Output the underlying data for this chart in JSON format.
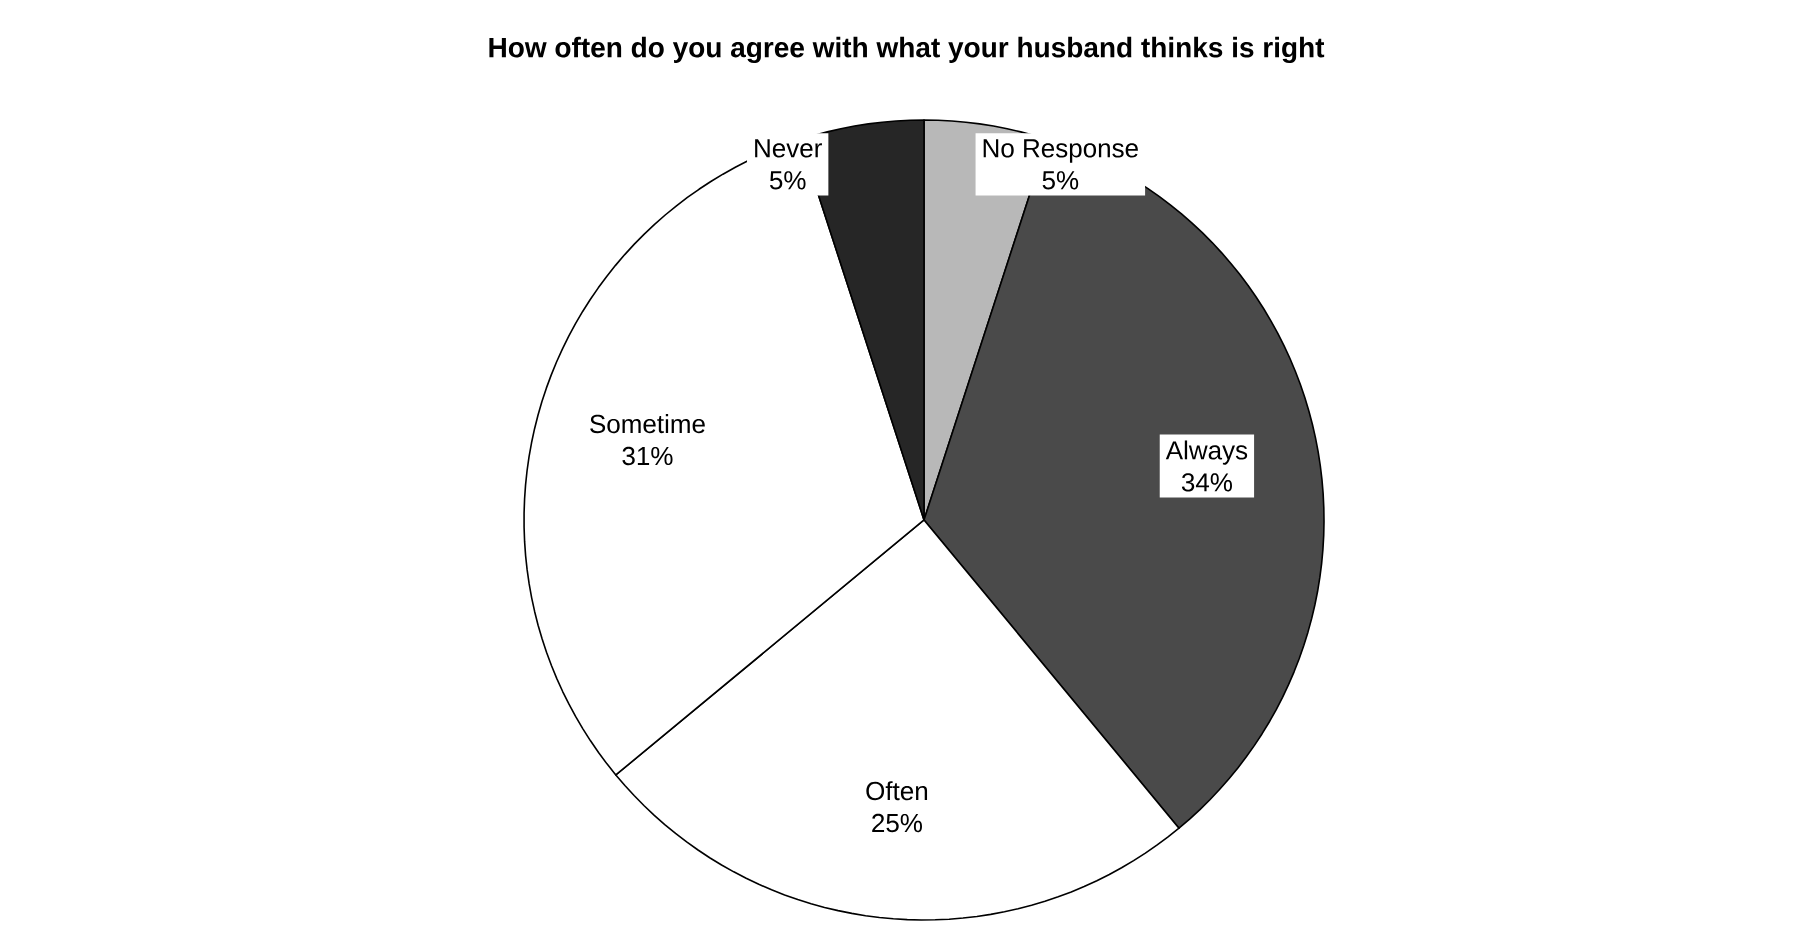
{
  "chart_data": {
    "type": "pie",
    "title": "How often do you agree with what your husband thinks is right",
    "categories": [
      "No Response",
      "Always",
      "Often",
      "Sometime",
      "Never"
    ],
    "values": [
      5,
      34,
      25,
      31,
      5
    ],
    "colors": [
      "#b8b8b8",
      "#4a4a4a",
      "#ffffff",
      "#ffffff",
      "#262626"
    ],
    "value_labels": [
      "5%",
      "34%",
      "25%",
      "31%",
      "5%"
    ]
  }
}
